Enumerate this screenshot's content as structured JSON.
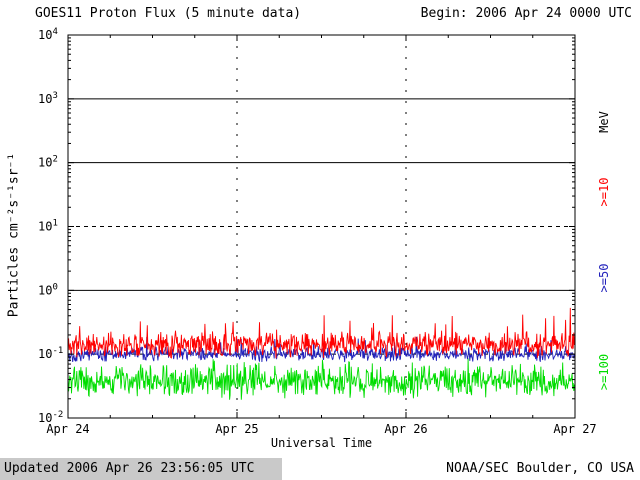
{
  "header": {
    "title": "GOES11 Proton Flux (5 minute data)",
    "begin_label": "Begin: 2006 Apr 24 0000 UTC"
  },
  "footer": {
    "updated": "Updated 2006 Apr 26 23:56:05 UTC",
    "source": "NOAA/SEC Boulder, CO USA"
  },
  "colors": {
    "background": "#ffffff",
    "axis": "#000000",
    "footer_strip": "#c9c9c9",
    "series_ge10": "#ff0000",
    "series_ge50": "#2222bb",
    "series_ge100": "#00dd00"
  },
  "chart_data": {
    "type": "line",
    "title": "GOES11 Proton Flux (5 minute data)",
    "xlabel": "Universal Time",
    "ylabel": "Particles cm⁻²s⁻¹sr⁻¹",
    "right_axis_label": "MeV",
    "x_ticks": [
      "Apr 24",
      "Apr 25",
      "Apr 26",
      "Apr 27"
    ],
    "x_range_days": 3,
    "points_per_day": 288,
    "y_scale": "log10",
    "ylog_range": [
      -2,
      4
    ],
    "y_tick_exponents": [
      4,
      3,
      2,
      1,
      0,
      -1,
      -2
    ],
    "hlines_solid_exp": [
      3,
      2,
      0
    ],
    "hlines_dashed_exp": [
      1,
      -1
    ],
    "vlines_dashed_days": [
      1,
      2
    ],
    "grid": "partial",
    "legend_position": "right-rotated",
    "series": [
      {
        "name": ">=10",
        "color": "#ff0000",
        "typical_flux": 0.14,
        "flux_range": [
          0.08,
          0.55
        ],
        "log_base": -0.85,
        "log_spread": 0.22,
        "spike": 0.45,
        "seed": 11
      },
      {
        "name": ">=50",
        "color": "#2222bb",
        "typical_flux": 0.1,
        "flux_range": [
          0.06,
          0.2
        ],
        "log_base": -1.0,
        "log_spread": 0.13,
        "spike": 0.2,
        "seed": 22
      },
      {
        "name": ">=100",
        "color": "#00dd00",
        "typical_flux": 0.035,
        "flux_range": [
          0.012,
          0.11
        ],
        "log_base": -1.42,
        "log_spread": 0.3,
        "spike": 0.2,
        "seed": 33
      }
    ]
  }
}
